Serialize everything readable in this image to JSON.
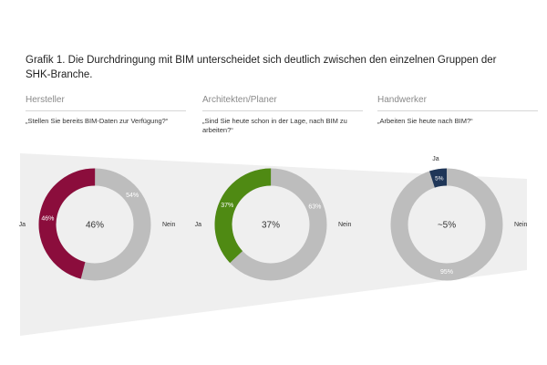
{
  "figure": {
    "title": "Grafik 1. Die Durchdringung mit BIM unterscheidet sich deutlich zwischen den einzelnen Gruppen der SHK-Branche."
  },
  "colors": {
    "nein": "#bdbdbd",
    "band": "#efefef",
    "hersteller_ja": "#8b0d3c",
    "planer_ja": "#4f8a13",
    "handwerker_ja": "#1f3658"
  },
  "chart_data": [
    {
      "type": "pie",
      "group": "Hersteller",
      "question": "„Stellen Sie bereits BIM-Daten zur Verfügung?“",
      "center_label": "46%",
      "ja_color": "#8b0d3c",
      "slices": [
        {
          "name": "Ja",
          "value": 46,
          "label": "46%"
        },
        {
          "name": "Nein",
          "value": 54,
          "label": "54%"
        }
      ]
    },
    {
      "type": "pie",
      "group": "Architekten/Planer",
      "question": "„Sind Sie heute schon in der Lage, nach BIM zu arbeiten?“",
      "center_label": "37%",
      "ja_color": "#4f8a13",
      "slices": [
        {
          "name": "Ja",
          "value": 37,
          "label": "37%"
        },
        {
          "name": "Nein",
          "value": 63,
          "label": "63%"
        }
      ]
    },
    {
      "type": "pie",
      "group": "Handwerker",
      "question": "„Arbeiten Sie heute nach BIM?“",
      "center_label": "~5%",
      "ja_color": "#1f3658",
      "slices": [
        {
          "name": "Ja",
          "value": 5,
          "label": "5%"
        },
        {
          "name": "Nein",
          "value": 95,
          "label": "95%"
        }
      ]
    }
  ]
}
